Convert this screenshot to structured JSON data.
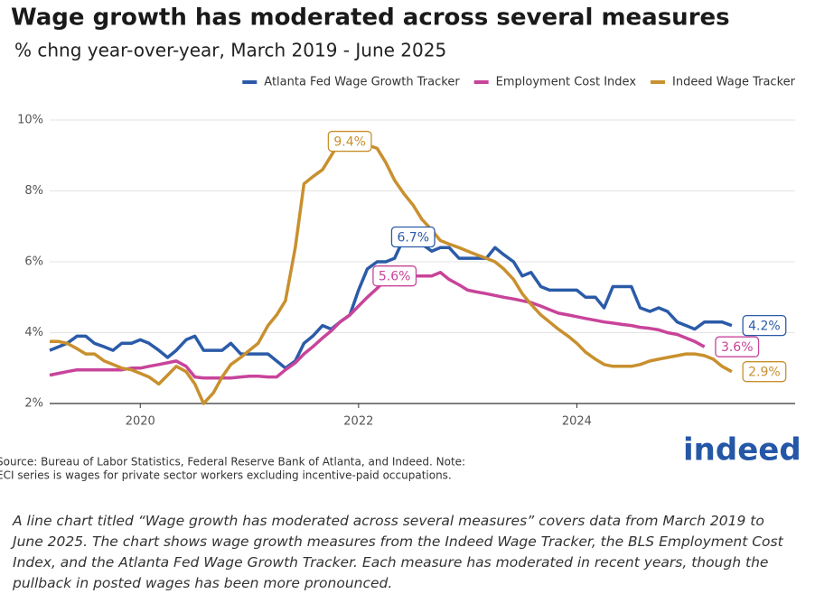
{
  "chart_data": {
    "type": "line",
    "title": "Wage growth has moderated across several measures",
    "subtitle": "% chng year-over-year, March 2019 - June 2025",
    "source": "Source: Bureau of Labor Statistics, Federal Reserve Bank of Atlanta, and Indeed. Note:",
    "source_note": "ECI series is wages for private sector workers excluding incentive-paid occupations.",
    "logo": "indeed",
    "caption": "A line chart titled “Wage growth has moderated across several measures” covers data from March 2019 to June 2025. The chart shows wage growth measures from the Indeed Wage Tracker, the BLS Employment Cost Index, and the Atlanta Fed Wage Growth Tracker. Each measure has moderated in recent years, though the pullback in posted wages has been more pronounced.",
    "legend": "top-right",
    "grid": true,
    "xlim": [
      2019.17,
      2026
    ],
    "xticks": [
      2020,
      2022,
      2024
    ],
    "ylim": [
      2,
      10
    ],
    "yticks": [
      {
        "value": 2,
        "label": "2%"
      },
      {
        "value": 4,
        "label": "4%"
      },
      {
        "value": 6,
        "label": "6%"
      },
      {
        "value": 8,
        "label": "8%"
      },
      {
        "value": 10,
        "label": "10%"
      }
    ],
    "x": [
      2019.17,
      2019.25,
      2019.33,
      2019.42,
      2019.5,
      2019.58,
      2019.67,
      2019.75,
      2019.83,
      2019.92,
      2020,
      2020.08,
      2020.17,
      2020.25,
      2020.33,
      2020.42,
      2020.5,
      2020.58,
      2020.67,
      2020.75,
      2020.83,
      2020.92,
      2021,
      2021.08,
      2021.17,
      2021.25,
      2021.33,
      2021.42,
      2021.5,
      2021.58,
      2021.67,
      2021.75,
      2021.83,
      2021.92,
      2022,
      2022.08,
      2022.17,
      2022.25,
      2022.33,
      2022.42,
      2022.5,
      2022.58,
      2022.67,
      2022.75,
      2022.83,
      2022.92,
      2023,
      2023.08,
      2023.17,
      2023.25,
      2023.33,
      2023.42,
      2023.5,
      2023.58,
      2023.67,
      2023.75,
      2023.83,
      2023.92,
      2024,
      2024.08,
      2024.17,
      2024.25,
      2024.33,
      2024.42,
      2024.5,
      2024.58,
      2024.67,
      2024.75,
      2024.83,
      2024.92,
      2025,
      2025.08,
      2025.17,
      2025.25,
      2025.33,
      2025.42
    ],
    "series": [
      {
        "name": "Atlanta Fed Wage Growth Tracker",
        "color": "#2b5ba8",
        "values": [
          3.5,
          3.6,
          3.7,
          3.9,
          3.9,
          3.7,
          3.6,
          3.5,
          3.7,
          3.7,
          3.8,
          3.7,
          3.5,
          3.3,
          3.5,
          3.8,
          3.9,
          3.5,
          3.5,
          3.5,
          3.7,
          3.4,
          3.4,
          3.4,
          3.4,
          3.2,
          3.0,
          3.2,
          3.7,
          3.9,
          4.2,
          4.1,
          4.3,
          4.5,
          5.2,
          5.8,
          6.0,
          6.0,
          6.1,
          6.7,
          6.7,
          6.5,
          6.3,
          6.4,
          6.4,
          6.1,
          6.1,
          6.1,
          6.1,
          6.4,
          6.2,
          6.0,
          5.6,
          5.7,
          5.3,
          5.2,
          5.2,
          5.2,
          5.2,
          5.0,
          5.0,
          4.7,
          5.3,
          5.3,
          5.3,
          4.7,
          4.6,
          4.7,
          4.6,
          4.3,
          4.2,
          4.1,
          4.3,
          4.3,
          4.3,
          4.2
        ],
        "value_labels": [
          null,
          null,
          null,
          null,
          null,
          null,
          null,
          null,
          null,
          null,
          null,
          null,
          null,
          null,
          null,
          null,
          null,
          null,
          null,
          null,
          null,
          null,
          null,
          null,
          null,
          null,
          null,
          null,
          null,
          null,
          null,
          null,
          null,
          null,
          null,
          null,
          null,
          null,
          null,
          null,
          "6.7%",
          null,
          null,
          null,
          null,
          null,
          null,
          null,
          null,
          null,
          null,
          null,
          null,
          null,
          null,
          null,
          null,
          null,
          null,
          null,
          null,
          null,
          null,
          null,
          null,
          null,
          null,
          null,
          null,
          null,
          null,
          null,
          null,
          null,
          null,
          "4.2%"
        ]
      },
      {
        "name": "Employment Cost Index",
        "color": "#c8449a",
        "values": [
          2.8,
          2.85,
          2.9,
          2.95,
          2.95,
          2.95,
          2.95,
          2.95,
          2.95,
          3.0,
          3.0,
          3.05,
          3.1,
          3.15,
          3.2,
          3.05,
          2.75,
          2.72,
          2.72,
          2.72,
          2.72,
          2.75,
          2.77,
          2.77,
          2.75,
          2.75,
          2.95,
          3.15,
          3.4,
          3.6,
          3.85,
          4.05,
          4.3,
          4.5,
          4.75,
          5.0,
          5.25,
          5.5,
          5.6,
          5.6,
          5.6,
          5.6,
          5.6,
          5.7,
          5.5,
          5.35,
          5.2,
          5.15,
          5.1,
          5.05,
          5.0,
          4.95,
          4.9,
          4.85,
          4.75,
          4.65,
          4.55,
          4.5,
          4.45,
          4.4,
          4.35,
          4.3,
          4.27,
          4.23,
          4.2,
          4.15,
          4.12,
          4.08,
          4.0,
          3.95,
          3.85,
          3.75,
          3.6,
          null,
          null,
          null
        ],
        "value_labels": [
          null,
          null,
          null,
          null,
          null,
          null,
          null,
          null,
          null,
          null,
          null,
          null,
          null,
          null,
          null,
          null,
          null,
          null,
          null,
          null,
          null,
          null,
          null,
          null,
          null,
          null,
          null,
          null,
          null,
          null,
          null,
          null,
          null,
          null,
          null,
          null,
          null,
          null,
          "5.6%",
          null,
          null,
          null,
          null,
          null,
          null,
          null,
          null,
          null,
          null,
          null,
          null,
          null,
          null,
          null,
          null,
          null,
          null,
          null,
          null,
          null,
          null,
          null,
          null,
          null,
          null,
          null,
          null,
          null,
          null,
          null,
          null,
          null,
          "3.6%",
          null,
          null,
          null
        ]
      },
      {
        "name": "Indeed Wage Tracker",
        "color": "#c8902e",
        "values": [
          3.75,
          3.75,
          3.7,
          3.55,
          3.4,
          3.4,
          3.2,
          3.1,
          3.0,
          2.95,
          2.85,
          2.75,
          2.55,
          2.8,
          3.05,
          2.9,
          2.55,
          2.0,
          2.3,
          2.75,
          3.1,
          3.3,
          3.5,
          3.7,
          4.2,
          4.5,
          4.9,
          6.4,
          8.2,
          8.4,
          8.6,
          9.0,
          9.4,
          9.4,
          9.4,
          9.3,
          9.2,
          8.8,
          8.3,
          7.9,
          7.6,
          7.2,
          6.9,
          6.6,
          6.5,
          6.4,
          6.3,
          6.2,
          6.1,
          6.0,
          5.8,
          5.5,
          5.1,
          4.8,
          4.5,
          4.3,
          4.1,
          3.9,
          3.7,
          3.45,
          3.25,
          3.1,
          3.05,
          3.05,
          3.05,
          3.1,
          3.2,
          3.25,
          3.3,
          3.35,
          3.4,
          3.4,
          3.35,
          3.25,
          3.05,
          2.9
        ],
        "value_labels": [
          null,
          null,
          null,
          null,
          null,
          null,
          null,
          null,
          null,
          null,
          null,
          null,
          null,
          null,
          null,
          null,
          null,
          null,
          null,
          null,
          null,
          null,
          null,
          null,
          null,
          null,
          null,
          null,
          null,
          null,
          null,
          null,
          null,
          "9.4%",
          null,
          null,
          null,
          null,
          null,
          null,
          null,
          null,
          null,
          null,
          null,
          null,
          null,
          null,
          null,
          null,
          null,
          null,
          null,
          null,
          null,
          null,
          null,
          null,
          null,
          null,
          null,
          null,
          null,
          null,
          null,
          null,
          null,
          null,
          null,
          null,
          null,
          null,
          null,
          null,
          null,
          "2.9%"
        ]
      }
    ]
  }
}
